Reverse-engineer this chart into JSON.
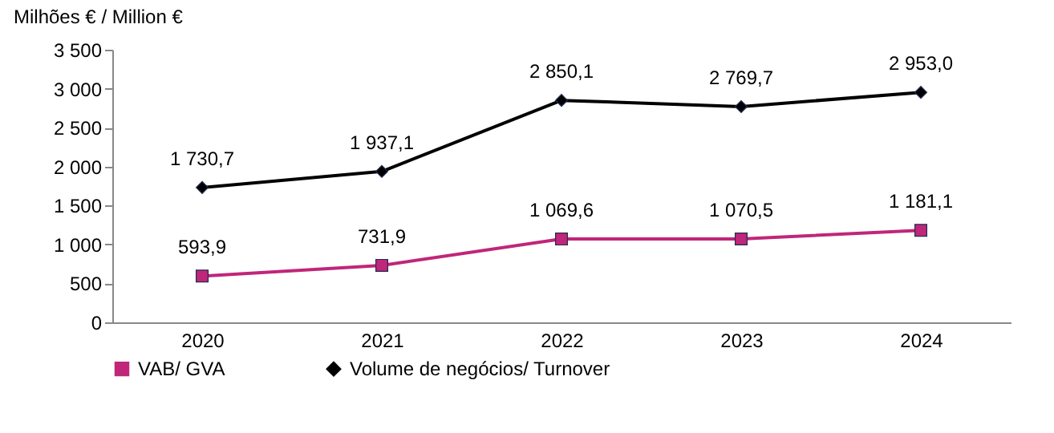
{
  "chart_data": {
    "type": "line",
    "ylabel": "Milhões € / Million €",
    "categories": [
      "2020",
      "2021",
      "2022",
      "2023",
      "2024"
    ],
    "series": [
      {
        "name": "VAB/ GVA",
        "color": "#c0267a",
        "marker": "square",
        "values": [
          593.9,
          731.9,
          1069.6,
          1070.5,
          1181.1
        ],
        "value_labels": [
          "593,9",
          "731,9",
          "1 069,6",
          "1 070,5",
          "1 181,1"
        ]
      },
      {
        "name": "Volume de negócios/ Turnover",
        "color": "#000000",
        "marker": "diamond",
        "values": [
          1730.7,
          1937.1,
          2850.1,
          2769.7,
          2953.0
        ],
        "value_labels": [
          "1 730,7",
          "1 937,1",
          "2 850,1",
          "2 769,7",
          "2 953,0"
        ]
      }
    ],
    "ylim": [
      0,
      3500
    ],
    "yticks": [
      0,
      500,
      {
        "value": 1000,
        "label": "1 000"
      },
      {
        "value": 1500,
        "label": "1 500"
      },
      {
        "value": 2000,
        "label": "2 000"
      },
      {
        "value": 2500,
        "label": "2 500"
      },
      {
        "value": 3000,
        "label": "3 000"
      },
      {
        "value": 3500,
        "label": "3 500"
      }
    ],
    "grid": false,
    "legend": "bottom",
    "line_style": "solid"
  }
}
